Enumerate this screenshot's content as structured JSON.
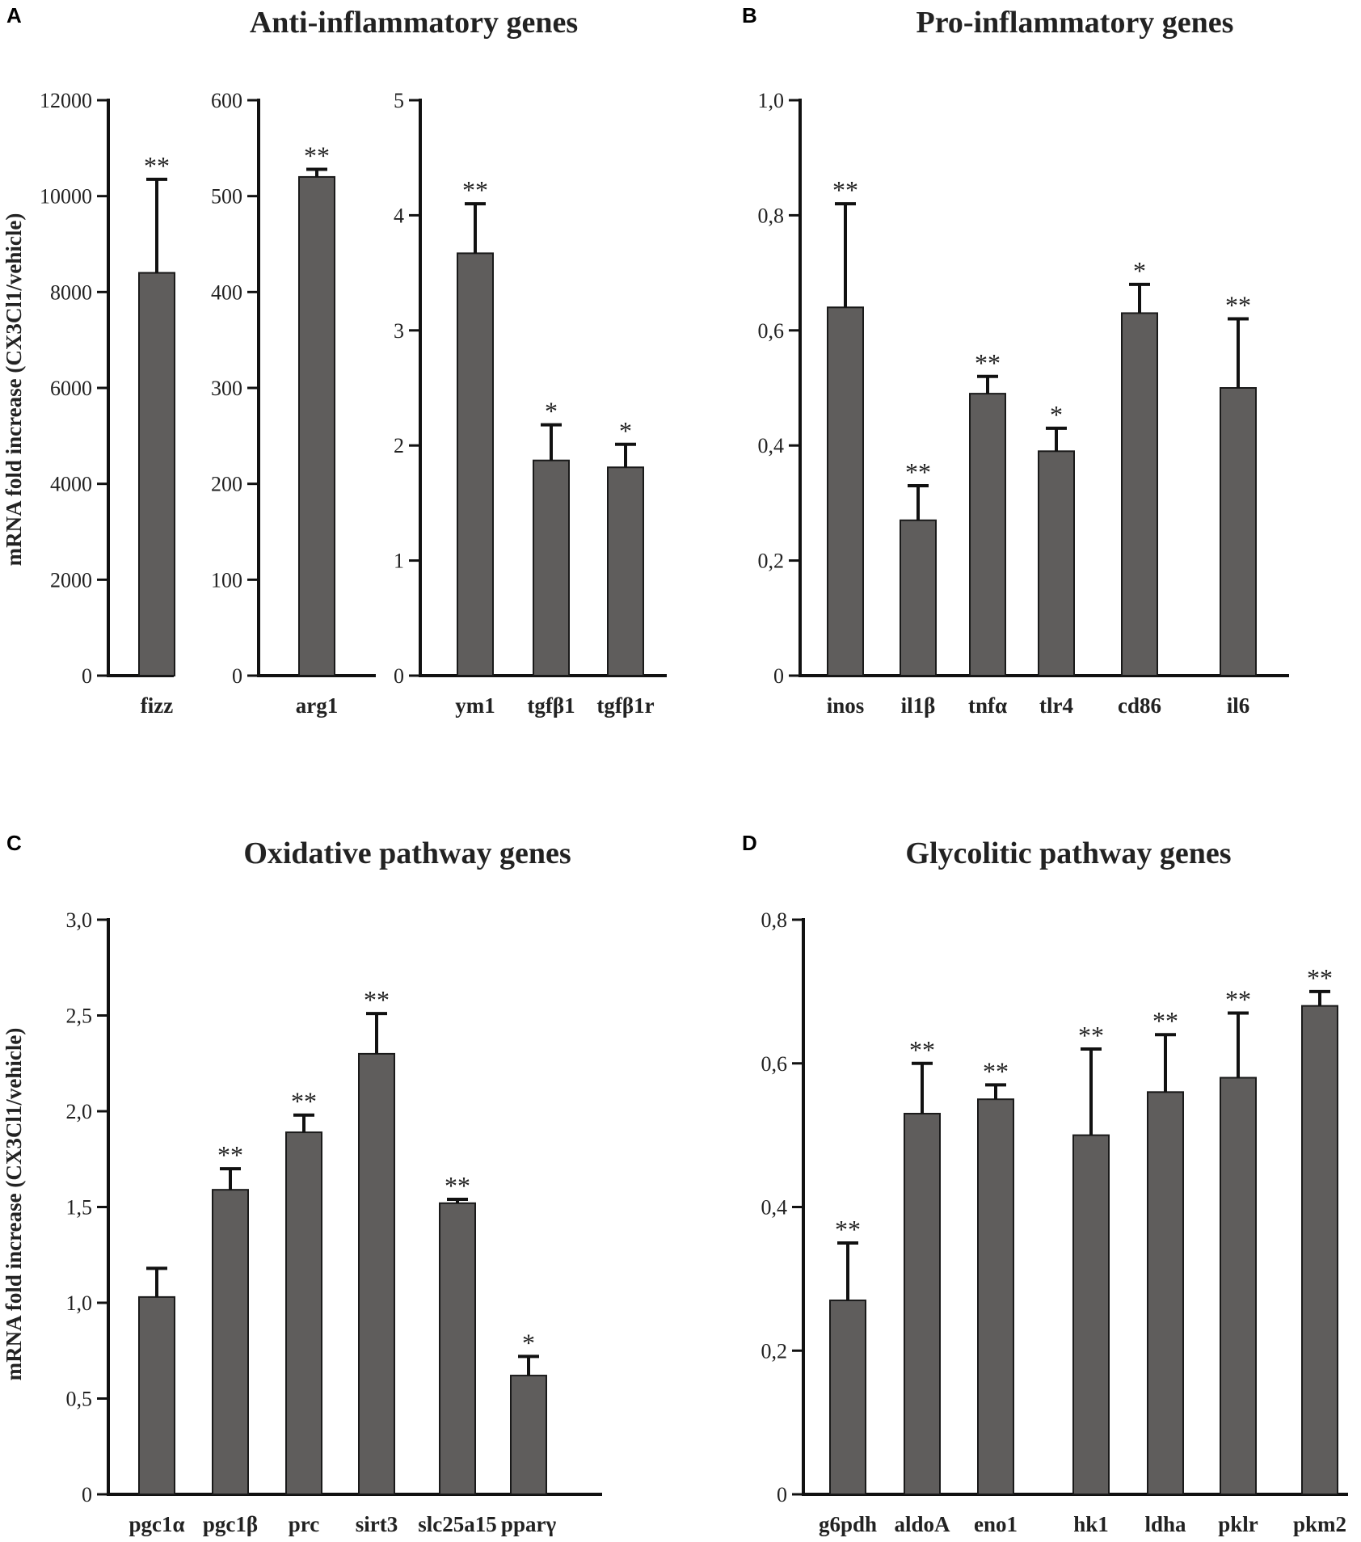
{
  "figure": {
    "y_axis_title": "mRNA fold increase (CX3Cl1/vehicle)"
  },
  "chart_data": [
    {
      "id": "A",
      "panel": "A",
      "title": "Anti-inflammatory genes",
      "type": "bar",
      "subplots": [
        {
          "id": "A1",
          "ylim": [
            0,
            12000
          ],
          "ticks": [
            0,
            2000,
            4000,
            6000,
            8000,
            10000,
            12000
          ],
          "tick_labels": [
            "0",
            "2000",
            "4000",
            "6000",
            "8000",
            "10000",
            "12000"
          ],
          "categories": [
            "fizz"
          ],
          "values": [
            8400
          ],
          "errors": [
            1950
          ],
          "significance": [
            "**"
          ]
        },
        {
          "id": "A2",
          "ylim": [
            0,
            600
          ],
          "ticks": [
            0,
            100,
            200,
            300,
            400,
            500,
            600
          ],
          "tick_labels": [
            "0",
            "100",
            "200",
            "300",
            "400",
            "500",
            "600"
          ],
          "categories": [
            "arg1"
          ],
          "values": [
            520
          ],
          "errors": [
            8
          ],
          "significance": [
            "**"
          ]
        },
        {
          "id": "A3",
          "ylim": [
            0,
            5
          ],
          "ticks": [
            0,
            1,
            2,
            3,
            4,
            5
          ],
          "tick_labels": [
            "0",
            "1",
            "2",
            "3",
            "4",
            "5"
          ],
          "categories": [
            "ym1",
            "tgfβ1",
            "tgfβ1r"
          ],
          "values": [
            3.67,
            1.87,
            1.81
          ],
          "errors": [
            0.43,
            0.31,
            0.2
          ],
          "significance": [
            "**",
            "*",
            "*"
          ]
        }
      ]
    },
    {
      "id": "B",
      "panel": "B",
      "title": "Pro-inflammatory genes",
      "type": "bar",
      "ylim": [
        0,
        1.0
      ],
      "ticks": [
        0,
        0.2,
        0.4,
        0.6,
        0.8,
        1.0
      ],
      "tick_labels": [
        "0",
        "0,2",
        "0,4",
        "0,6",
        "0,8",
        "1,0"
      ],
      "categories": [
        "inos",
        "il1β",
        "tnfα",
        "tlr4",
        "cd86",
        "il6"
      ],
      "values": [
        0.64,
        0.27,
        0.49,
        0.39,
        0.63,
        0.5
      ],
      "errors": [
        0.18,
        0.06,
        0.03,
        0.04,
        0.05,
        0.12
      ],
      "significance": [
        "**",
        "**",
        "**",
        "*",
        "*",
        "**"
      ]
    },
    {
      "id": "C",
      "panel": "C",
      "title": "Oxidative pathway genes",
      "type": "bar",
      "ylim": [
        0,
        3.0
      ],
      "ticks": [
        0,
        0.5,
        1.0,
        1.5,
        2.0,
        2.5,
        3.0
      ],
      "tick_labels": [
        "0",
        "0,5",
        "1,0",
        "1,5",
        "2,0",
        "2,5",
        "3,0"
      ],
      "categories": [
        "pgc1α",
        "pgc1β",
        "prc",
        "sirt3",
        "slc25a15",
        "pparγ"
      ],
      "values": [
        1.03,
        1.59,
        1.89,
        2.3,
        1.52,
        0.62
      ],
      "errors": [
        0.15,
        0.11,
        0.09,
        0.21,
        0.02,
        0.1
      ],
      "significance": [
        "",
        "**",
        "**",
        "**",
        "**",
        "*"
      ]
    },
    {
      "id": "D",
      "panel": "D",
      "title": "Glycolitic pathway genes",
      "type": "bar",
      "ylim": [
        0,
        0.8
      ],
      "ticks": [
        0,
        0.2,
        0.4,
        0.6,
        0.8
      ],
      "tick_labels": [
        "0",
        "0,2",
        "0,4",
        "0,6",
        "0,8"
      ],
      "categories": [
        "g6pdh",
        "aldoA",
        "eno1",
        "hk1",
        "ldha",
        "pklr",
        "pkm2"
      ],
      "values": [
        0.27,
        0.53,
        0.55,
        0.5,
        0.56,
        0.58,
        0.68
      ],
      "errors": [
        0.08,
        0.07,
        0.02,
        0.12,
        0.08,
        0.09,
        0.02
      ],
      "significance": [
        "**",
        "**",
        "**",
        "**",
        "**",
        "**",
        "**"
      ]
    }
  ]
}
